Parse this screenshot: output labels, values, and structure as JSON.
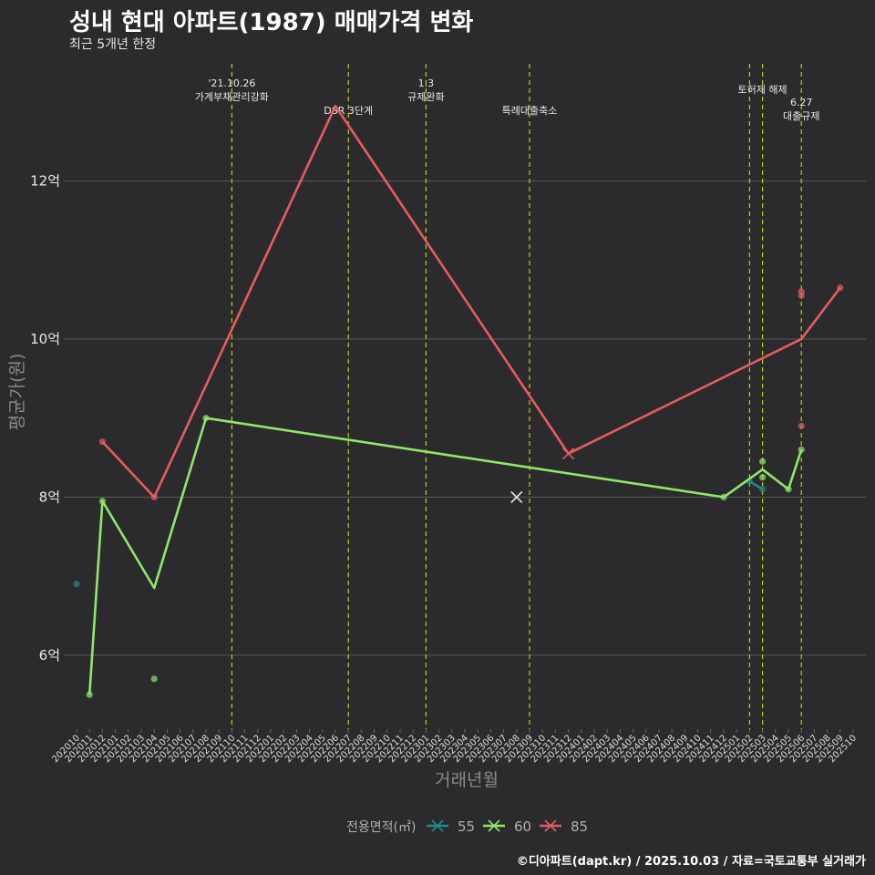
{
  "title": "성내 현대 아파트(1987) 매매가격 변화",
  "subtitle": "최근 5개년 한정",
  "caption": "©디아파트(dapt.kr) / 2025.10.03 / 자료=국토교통부 실거래가",
  "chart_data": {
    "type": "line",
    "xlabel": "거래년월",
    "ylabel": "평균가(원)",
    "x_ticks": [
      "202010",
      "202011",
      "202012",
      "202101",
      "202102",
      "202103",
      "202104",
      "202105",
      "202106",
      "202107",
      "202108",
      "202109",
      "202110",
      "202111",
      "202112",
      "202201",
      "202202",
      "202203",
      "202204",
      "202205",
      "202206",
      "202207",
      "202208",
      "202209",
      "202210",
      "202211",
      "202212",
      "202301",
      "202302",
      "202303",
      "202304",
      "202305",
      "202306",
      "202307",
      "202308",
      "202309",
      "202310",
      "202311",
      "202312",
      "202401",
      "202402",
      "202403",
      "202404",
      "202405",
      "202406",
      "202407",
      "202408",
      "202409",
      "202410",
      "202411",
      "202412",
      "202501",
      "202502",
      "202503",
      "202504",
      "202505",
      "202506",
      "202507",
      "202508",
      "202509",
      "202510"
    ],
    "y_ticks": [
      {
        "value": 6,
        "label": "6억"
      },
      {
        "value": 8,
        "label": "8억"
      },
      {
        "value": 10,
        "label": "10억"
      },
      {
        "value": 12,
        "label": "12억"
      }
    ],
    "ylim": [
      5.2,
      13.8
    ],
    "legend": {
      "title": "전용면적(㎡)",
      "position": "bottom"
    },
    "series": [
      {
        "name": "55",
        "color": "#1f8a8a",
        "line": [
          [
            "202502",
            8.2
          ],
          [
            "202503",
            8.1
          ]
        ],
        "points": [
          [
            "202010",
            6.9
          ],
          [
            "202502",
            8.2
          ],
          [
            "202503",
            8.1
          ]
        ]
      },
      {
        "name": "60",
        "color": "#8ee86a",
        "line": [
          [
            "202011",
            5.5
          ],
          [
            "202012",
            7.95
          ],
          [
            "202104",
            6.85
          ],
          [
            "202108",
            9.0
          ],
          [
            "202412",
            8.0
          ],
          [
            "202503",
            8.35
          ],
          [
            "202505",
            8.1
          ],
          [
            "202506",
            8.6
          ]
        ],
        "points": [
          [
            "202011",
            5.5
          ],
          [
            "202012",
            7.95
          ],
          [
            "202104",
            5.7
          ],
          [
            "202108",
            9.0
          ],
          [
            "202412",
            8.0
          ],
          [
            "202503",
            8.45
          ],
          [
            "202503",
            8.25
          ],
          [
            "202505",
            8.1
          ],
          [
            "202506",
            8.6
          ]
        ],
        "cross_points": [
          [
            "202308",
            8.0
          ]
        ]
      },
      {
        "name": "85",
        "color": "#e85c5c",
        "line": [
          [
            "202012",
            8.7
          ],
          [
            "202104",
            8.0
          ],
          [
            "202206",
            12.95
          ],
          [
            "202312",
            8.55
          ],
          [
            "202506",
            10.0
          ],
          [
            "202509",
            10.65
          ]
        ],
        "points": [
          [
            "202012",
            8.7
          ],
          [
            "202104",
            8.0
          ],
          [
            "202506",
            10.6
          ],
          [
            "202506",
            10.55
          ],
          [
            "202506",
            8.9
          ],
          [
            "202509",
            10.65
          ]
        ],
        "cross_points": [
          [
            "202312",
            8.55
          ]
        ]
      }
    ],
    "events": [
      {
        "x": "202110",
        "lines": [
          "'21.10.26",
          "가계부채관리강화"
        ],
        "row": 0
      },
      {
        "x": "202207",
        "lines": [
          "DSR 3단계"
        ],
        "row": 2
      },
      {
        "x": "202301",
        "lines": [
          "1.3",
          "규제완화"
        ],
        "row": 0
      },
      {
        "x": "202309",
        "lines": [
          "특례대출축소"
        ],
        "row": 2
      },
      {
        "x": "202502",
        "lines": [
          ""
        ],
        "row": 0
      },
      {
        "x": "202503",
        "lines": [
          "토허제 해제"
        ],
        "row": 1
      },
      {
        "x": "202506",
        "lines": [
          "6.27",
          "대출규제"
        ],
        "row": 3
      }
    ]
  }
}
